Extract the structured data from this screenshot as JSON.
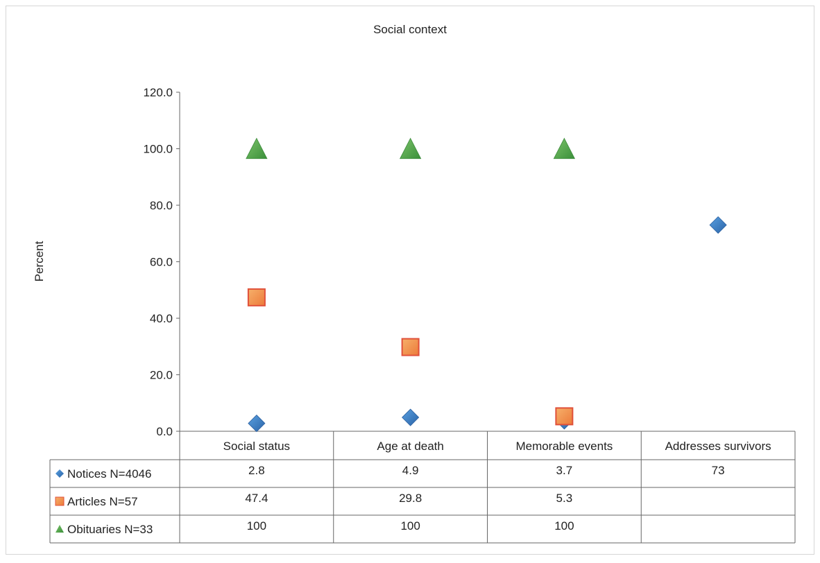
{
  "chart_data": {
    "type": "scatter",
    "title": "Social context",
    "ylabel": "Percent",
    "xlabel": "",
    "ylim": [
      0,
      120
    ],
    "yticks": [
      "0.0",
      "20.0",
      "40.0",
      "60.0",
      "80.0",
      "100.0",
      "120.0"
    ],
    "grid": false,
    "legend": "data-table",
    "categories": [
      "Social status",
      "Age at death",
      "Memorable events",
      "Addresses survivors"
    ],
    "series": [
      {
        "name": "Notices N=4046",
        "marker": "diamond",
        "color": "#3b7dc4",
        "values": [
          2.8,
          4.9,
          3.7,
          73
        ],
        "labels": [
          "2.8",
          "4.9",
          "3.7",
          "73"
        ]
      },
      {
        "name": "Articles N=57",
        "marker": "square",
        "color": "#f08a4b",
        "values": [
          47.4,
          29.8,
          5.3,
          null
        ],
        "labels": [
          "47.4",
          "29.8",
          "5.3",
          ""
        ]
      },
      {
        "name": "Obituaries N=33",
        "marker": "triangle",
        "color": "#4aa24a",
        "values": [
          100,
          100,
          100,
          null
        ],
        "labels": [
          "100",
          "100",
          "100",
          ""
        ]
      }
    ]
  }
}
